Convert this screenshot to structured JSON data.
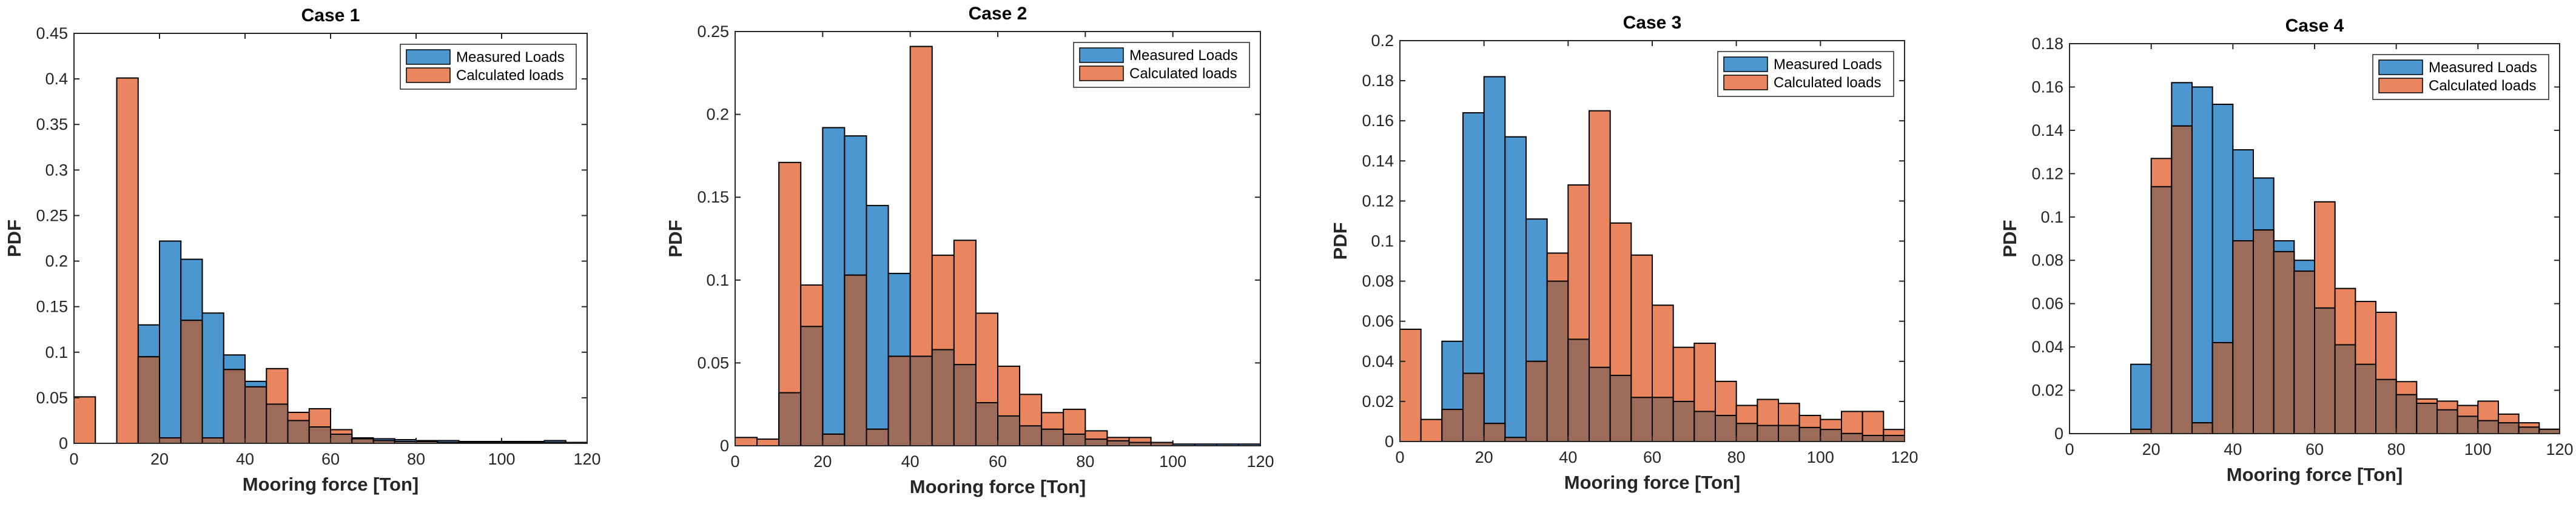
{
  "colors": {
    "measured": "#4d97d0",
    "calculated": "#e9865f",
    "overlap": "#9c6b5a",
    "edge": "#000000",
    "axis": "#262626"
  },
  "chart_data": [
    {
      "type": "bar",
      "title": "Case 1",
      "xlabel": "Mooring force [Ton]",
      "ylabel": "PDF",
      "xlim": [
        0,
        120
      ],
      "ylim": [
        0,
        0.45
      ],
      "xticks": [
        "0",
        "20",
        "40",
        "60",
        "80",
        "100",
        "120"
      ],
      "yticks": [
        "0",
        "0.05",
        "0.1",
        "0.15",
        "0.2",
        "0.25",
        "0.3",
        "0.35",
        "0.4",
        "0.45"
      ],
      "bin_width": 5,
      "legend": "top-right",
      "series": [
        {
          "name": "Measured Loads",
          "bin_starts": [
            10,
            15,
            20,
            25,
            30,
            35,
            40,
            45,
            50,
            55,
            60,
            65,
            70,
            75,
            80,
            85,
            90,
            95,
            100,
            105,
            110,
            115
          ],
          "values": [
            0.0,
            0.13,
            0.222,
            0.202,
            0.143,
            0.097,
            0.068,
            0.043,
            0.025,
            0.018,
            0.01,
            0.006,
            0.005,
            0.004,
            0.003,
            0.003,
            0.002,
            0.002,
            0.002,
            0.002,
            0.003,
            0.001
          ]
        },
        {
          "name": "Calculated loads",
          "bin_starts": [
            0,
            5,
            10,
            15,
            20,
            25,
            30,
            35,
            40,
            45,
            50,
            55,
            60,
            65,
            70,
            75,
            80,
            85,
            90,
            95,
            100,
            105,
            110,
            115
          ],
          "values": [
            0.051,
            0.0,
            0.401,
            0.095,
            0.006,
            0.135,
            0.006,
            0.081,
            0.062,
            0.082,
            0.034,
            0.038,
            0.015,
            0.005,
            0.003,
            0.002,
            0.002,
            0.001,
            0.001,
            0.001,
            0.001,
            0.001,
            0.001,
            0.001
          ]
        }
      ]
    },
    {
      "type": "bar",
      "title": "Case 2",
      "xlabel": "Mooring force [Ton]",
      "ylabel": "PDF",
      "xlim": [
        0,
        120
      ],
      "ylim": [
        0,
        0.25
      ],
      "xticks": [
        "0",
        "20",
        "40",
        "60",
        "80",
        "100",
        "120"
      ],
      "yticks": [
        "0",
        "0.05",
        "0.1",
        "0.15",
        "0.2",
        "0.25"
      ],
      "bin_width": 5,
      "legend": "top-right",
      "series": [
        {
          "name": "Measured Loads",
          "bin_starts": [
            10,
            15,
            20,
            25,
            30,
            35,
            40,
            45,
            50,
            55,
            60,
            65,
            70,
            75,
            80,
            85,
            90,
            95,
            100,
            105,
            110,
            115
          ],
          "values": [
            0.032,
            0.072,
            0.192,
            0.187,
            0.145,
            0.104,
            0.054,
            0.058,
            0.049,
            0.026,
            0.018,
            0.012,
            0.01,
            0.007,
            0.004,
            0.003,
            0.002,
            0.002,
            0.001,
            0.001,
            0.001,
            0.001
          ]
        },
        {
          "name": "Calculated loads",
          "bin_starts": [
            0,
            5,
            10,
            15,
            20,
            25,
            30,
            35,
            40,
            45,
            50,
            55,
            60,
            65,
            70,
            75,
            80,
            85,
            90,
            95,
            100,
            105,
            110,
            115
          ],
          "values": [
            0.005,
            0.004,
            0.171,
            0.097,
            0.007,
            0.103,
            0.01,
            0.054,
            0.241,
            0.115,
            0.124,
            0.08,
            0.048,
            0.031,
            0.02,
            0.022,
            0.009,
            0.005,
            0.005,
            0.002,
            0.0,
            0.0,
            0.0,
            0.0
          ]
        }
      ]
    },
    {
      "type": "bar",
      "title": "Case 3",
      "xlabel": "Mooring force [Ton]",
      "ylabel": "PDF",
      "xlim": [
        0,
        120
      ],
      "ylim": [
        0,
        0.2
      ],
      "xticks": [
        "0",
        "20",
        "40",
        "60",
        "80",
        "100",
        "120"
      ],
      "yticks": [
        "0",
        "0.02",
        "0.04",
        "0.06",
        "0.08",
        "0.1",
        "0.12",
        "0.14",
        "0.16",
        "0.18",
        "0.2"
      ],
      "bin_width": 5,
      "legend": "top-right",
      "series": [
        {
          "name": "Measured Loads",
          "bin_starts": [
            10,
            15,
            20,
            25,
            30,
            35,
            40,
            45,
            50,
            55,
            60,
            65,
            70,
            75,
            80,
            85,
            90,
            95,
            100,
            105,
            110,
            115
          ],
          "values": [
            0.05,
            0.164,
            0.182,
            0.152,
            0.111,
            0.08,
            0.051,
            0.037,
            0.033,
            0.022,
            0.022,
            0.02,
            0.015,
            0.013,
            0.009,
            0.008,
            0.008,
            0.007,
            0.006,
            0.004,
            0.003,
            0.003
          ]
        },
        {
          "name": "Calculated loads",
          "bin_starts": [
            0,
            5,
            10,
            15,
            20,
            25,
            30,
            35,
            40,
            45,
            50,
            55,
            60,
            65,
            70,
            75,
            80,
            85,
            90,
            95,
            100,
            105,
            110,
            115
          ],
          "values": [
            0.056,
            0.011,
            0.016,
            0.034,
            0.009,
            0.002,
            0.04,
            0.094,
            0.128,
            0.165,
            0.109,
            0.093,
            0.068,
            0.047,
            0.049,
            0.03,
            0.018,
            0.021,
            0.019,
            0.013,
            0.011,
            0.015,
            0.015,
            0.006
          ]
        }
      ]
    },
    {
      "type": "bar",
      "title": "Case 4",
      "xlabel": "Mooring force [Ton]",
      "ylabel": "PDF",
      "xlim": [
        0,
        120
      ],
      "ylim": [
        0,
        0.18
      ],
      "xticks": [
        "0",
        "20",
        "40",
        "60",
        "80",
        "100",
        "120"
      ],
      "yticks": [
        "0",
        "0.02",
        "0.04",
        "0.06",
        "0.08",
        "0.1",
        "0.12",
        "0.14",
        "0.16",
        "0.18"
      ],
      "bin_width": 5,
      "legend": "top-right",
      "series": [
        {
          "name": "Measured Loads",
          "bin_starts": [
            15,
            20,
            25,
            30,
            35,
            40,
            45,
            50,
            55,
            60,
            65,
            70,
            75,
            80,
            85,
            90,
            95,
            100,
            105,
            110,
            115
          ],
          "values": [
            0.032,
            0.114,
            0.162,
            0.16,
            0.152,
            0.131,
            0.118,
            0.089,
            0.08,
            0.058,
            0.041,
            0.032,
            0.025,
            0.018,
            0.014,
            0.011,
            0.008,
            0.006,
            0.005,
            0.003,
            0.002
          ]
        },
        {
          "name": "Calculated loads",
          "bin_starts": [
            0,
            5,
            10,
            15,
            20,
            25,
            30,
            35,
            40,
            45,
            50,
            55,
            60,
            65,
            70,
            75,
            80,
            85,
            90,
            95,
            100,
            105,
            110,
            115
          ],
          "values": [
            0.0,
            0.0,
            0.0,
            0.002,
            0.127,
            0.142,
            0.005,
            0.042,
            0.089,
            0.094,
            0.084,
            0.075,
            0.107,
            0.067,
            0.061,
            0.056,
            0.024,
            0.016,
            0.015,
            0.013,
            0.015,
            0.009,
            0.005,
            0.002
          ]
        }
      ]
    }
  ]
}
